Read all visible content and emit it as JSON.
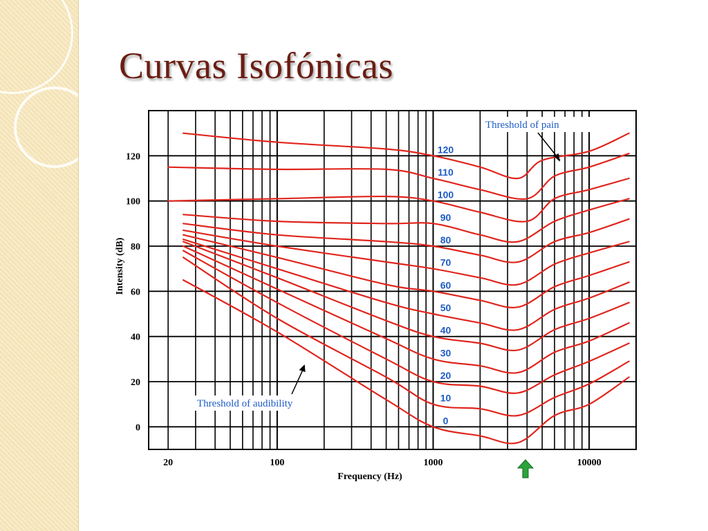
{
  "slide": {
    "title": "Curvas Isofónicas"
  },
  "chart_data": {
    "type": "line",
    "xlabel": "Frequency (Hz)",
    "ylabel": "Intensity (dB)",
    "x_scale": "log",
    "xlim": [
      15,
      20000
    ],
    "ylim": [
      -10,
      140
    ],
    "xticks": [
      20,
      100,
      1000,
      10000
    ],
    "xtick_labels": [
      "20",
      "100",
      "1000",
      "10000"
    ],
    "yticks": [
      0,
      20,
      40,
      60,
      80,
      100,
      120
    ],
    "ytick_labels": [
      "0",
      "20",
      "40",
      "60",
      "80",
      "100",
      "120"
    ],
    "grid": true,
    "line_color": "#e0261e",
    "label_color": "#1e5bc6",
    "annotations": [
      {
        "text": "Threshold of pain",
        "points_to": {
          "x": 6500,
          "y": 118
        }
      },
      {
        "text": "Threshold of audibility",
        "points_to": {
          "x": 150,
          "y": 27
        }
      }
    ],
    "marker": {
      "icon": "up-arrow-icon",
      "color": "#2aa33a",
      "x": 3500
    },
    "series": [
      {
        "label": "120",
        "x": [
          25,
          100,
          500,
          1000,
          2000,
          3500,
          5000,
          10000,
          18000
        ],
        "y": [
          130,
          126,
          123,
          120,
          115,
          110,
          118,
          122,
          130
        ]
      },
      {
        "label": "110",
        "x": [
          20,
          100,
          500,
          1000,
          2000,
          4000,
          6000,
          10000,
          18000
        ],
        "y": [
          115,
          114,
          114,
          110,
          105,
          101,
          111,
          115,
          121
        ]
      },
      {
        "label": "100",
        "x": [
          20,
          100,
          500,
          1000,
          2000,
          4000,
          6000,
          10000,
          18000
        ],
        "y": [
          100,
          101,
          102,
          100,
          95,
          91,
          101,
          105,
          110
        ]
      },
      {
        "label": "90",
        "x": [
          25,
          100,
          500,
          1000,
          2000,
          3500,
          6000,
          10000,
          18000
        ],
        "y": [
          94,
          91,
          90,
          90,
          85,
          82,
          91,
          96,
          101
        ]
      },
      {
        "label": "80",
        "x": [
          25,
          100,
          500,
          1000,
          2000,
          3500,
          6000,
          10000,
          18000
        ],
        "y": [
          90,
          85,
          82,
          80,
          76,
          73,
          82,
          86,
          92
        ]
      },
      {
        "label": "70",
        "x": [
          25,
          100,
          500,
          1000,
          2000,
          3500,
          6000,
          10000,
          18000
        ],
        "y": [
          87,
          80,
          73,
          70,
          66,
          63,
          72,
          77,
          82
        ]
      },
      {
        "label": "60",
        "x": [
          25,
          100,
          500,
          1000,
          2000,
          3500,
          6000,
          10000,
          18000
        ],
        "y": [
          85,
          75,
          63,
          60,
          56,
          53,
          62,
          67,
          73
        ]
      },
      {
        "label": "50",
        "x": [
          25,
          100,
          500,
          1000,
          2000,
          3500,
          6000,
          10000,
          18000
        ],
        "y": [
          83,
          70,
          55,
          50,
          46,
          43,
          52,
          57,
          64
        ]
      },
      {
        "label": "40",
        "x": [
          25,
          100,
          500,
          1000,
          2000,
          3500,
          6000,
          10000,
          18000
        ],
        "y": [
          82,
          66,
          47,
          40,
          37,
          34,
          43,
          48,
          55
        ]
      },
      {
        "label": "30",
        "x": [
          25,
          100,
          500,
          1000,
          2000,
          3500,
          6000,
          10000,
          18000
        ],
        "y": [
          80,
          61,
          39,
          30,
          27,
          24,
          33,
          38,
          46
        ]
      },
      {
        "label": "20",
        "x": [
          25,
          100,
          500,
          1000,
          2000,
          3500,
          6000,
          10000,
          18000
        ],
        "y": [
          78,
          55,
          30,
          20,
          18,
          15,
          23,
          29,
          37
        ]
      },
      {
        "label": "10",
        "x": [
          25,
          100,
          500,
          1000,
          2000,
          3500,
          6000,
          10000,
          18000
        ],
        "y": [
          75,
          48,
          22,
          10,
          8,
          5,
          13,
          19,
          29
        ]
      },
      {
        "label": "0",
        "x": [
          25,
          100,
          500,
          1000,
          2000,
          3500,
          6000,
          10000,
          18000
        ],
        "y": [
          65,
          42,
          12,
          0,
          -4,
          -7,
          5,
          10,
          22
        ]
      }
    ]
  }
}
